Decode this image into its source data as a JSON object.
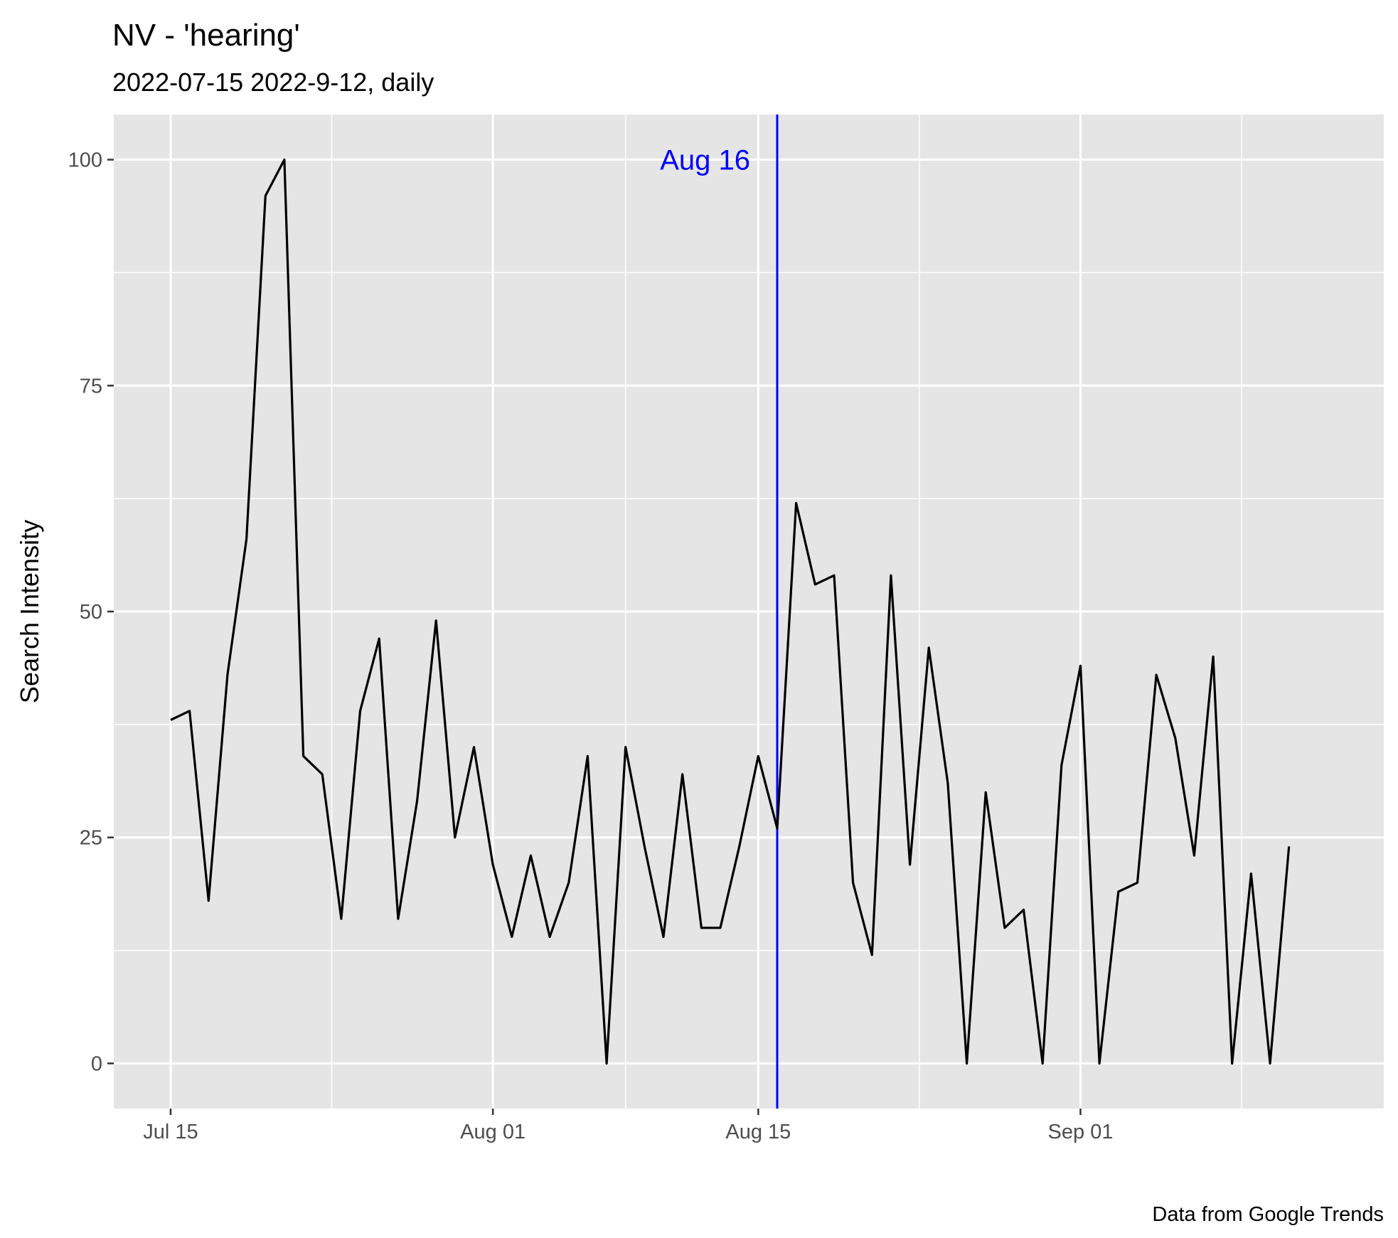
{
  "chart_data": {
    "type": "line",
    "title": "NV  - 'hearing'",
    "subtitle": "2022-07-15 2022-9-12, daily",
    "ylabel": "Search Intensity",
    "caption": "Data from Google Trends",
    "x_start": "2022-07-15",
    "x": [
      "2022-07-15",
      "2022-07-16",
      "2022-07-17",
      "2022-07-18",
      "2022-07-19",
      "2022-07-20",
      "2022-07-21",
      "2022-07-22",
      "2022-07-23",
      "2022-07-24",
      "2022-07-25",
      "2022-07-26",
      "2022-07-27",
      "2022-07-28",
      "2022-07-29",
      "2022-07-30",
      "2022-07-31",
      "2022-08-01",
      "2022-08-02",
      "2022-08-03",
      "2022-08-04",
      "2022-08-05",
      "2022-08-06",
      "2022-08-07",
      "2022-08-08",
      "2022-08-09",
      "2022-08-10",
      "2022-08-11",
      "2022-08-12",
      "2022-08-13",
      "2022-08-14",
      "2022-08-15",
      "2022-08-16",
      "2022-08-17",
      "2022-08-18",
      "2022-08-19",
      "2022-08-20",
      "2022-08-21",
      "2022-08-22",
      "2022-08-23",
      "2022-08-24",
      "2022-08-25",
      "2022-08-26",
      "2022-08-27",
      "2022-08-28",
      "2022-08-29",
      "2022-08-30",
      "2022-08-31",
      "2022-09-01",
      "2022-09-02",
      "2022-09-03",
      "2022-09-04",
      "2022-09-05",
      "2022-09-06",
      "2022-09-07",
      "2022-09-08",
      "2022-09-09",
      "2022-09-10",
      "2022-09-11",
      "2022-09-12"
    ],
    "values": [
      38,
      39,
      18,
      43,
      58,
      96,
      100,
      34,
      32,
      16,
      39,
      47,
      16,
      29,
      49,
      25,
      35,
      22,
      14,
      23,
      14,
      20,
      34,
      0,
      35,
      24,
      14,
      32,
      15,
      15,
      24,
      34,
      26,
      62,
      53,
      54,
      20,
      12,
      54,
      22,
      46,
      31,
      0,
      30,
      15,
      17,
      0,
      33,
      44,
      0,
      19,
      20,
      43,
      36,
      23,
      45,
      0,
      21,
      0,
      24
    ],
    "ylim": [
      -5,
      105
    ],
    "xlim": [
      "2022-07-12",
      "2022-09-17"
    ],
    "yticks": [
      0,
      25,
      50,
      75,
      100
    ],
    "xticks": [
      {
        "date": "2022-07-15",
        "label": "Jul 15"
      },
      {
        "date": "2022-08-01",
        "label": "Aug 01"
      },
      {
        "date": "2022-08-15",
        "label": "Aug 15"
      },
      {
        "date": "2022-09-01",
        "label": "Sep 01"
      }
    ],
    "grid": true,
    "colors": {
      "line": "#000000",
      "vline": "#0000ff",
      "panel": "#e5e5e5",
      "grid": "#ffffff"
    },
    "vline": {
      "date": "2022-08-16",
      "label": "Aug 16",
      "label_y": 100
    }
  }
}
